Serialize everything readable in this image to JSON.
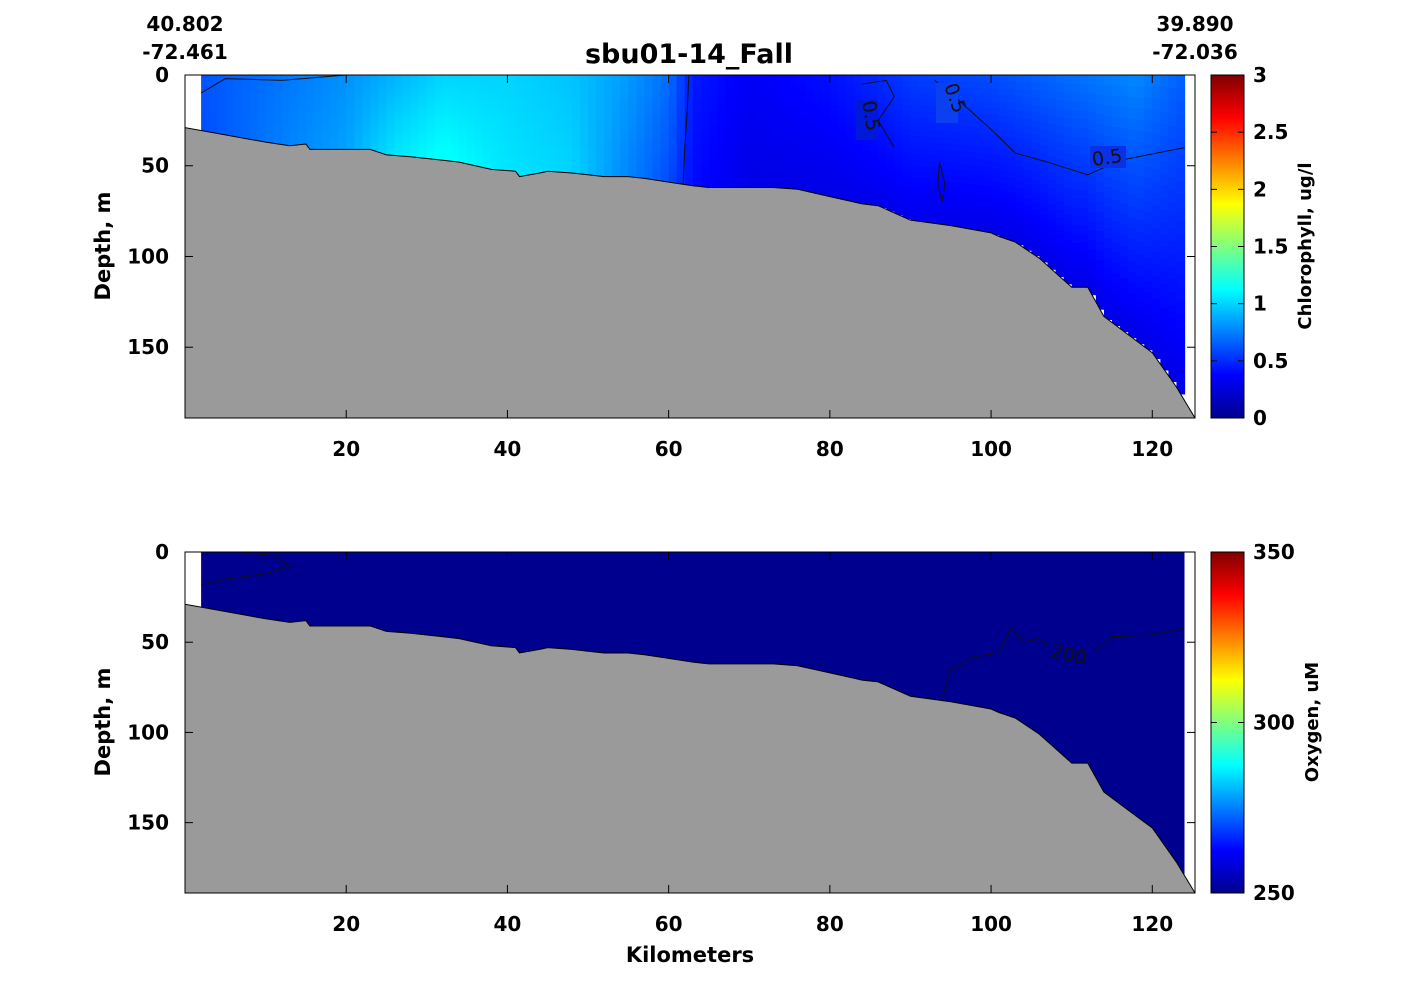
{
  "title": "sbu01-14_Fall",
  "coords": {
    "start": {
      "lat": "40.802",
      "lon": "-72.461"
    },
    "end": {
      "lat": "39.890",
      "lon": "-72.036"
    }
  },
  "colors": {
    "bathymetry": "#9a9a9a",
    "axis": "#000000",
    "colormap": "jet"
  },
  "chart_data": [
    {
      "type": "heatmap",
      "id": "chlorophyll",
      "title": "sbu01-14_Fall",
      "xlabel": "",
      "ylabel": "Depth, m",
      "xlim": [
        0,
        125.3
      ],
      "ylim": [
        189,
        0
      ],
      "xticks": [
        "20",
        "40",
        "60",
        "80",
        "100",
        "120"
      ],
      "yticks": [
        "0",
        "50",
        "100",
        "150"
      ],
      "colorbar": {
        "label": "Chlorophyll, ug/l",
        "range": [
          0,
          3
        ],
        "ticks": [
          "0",
          "0.5",
          "1",
          "1.5",
          "2",
          "2.5",
          "3"
        ]
      },
      "field_km": [
        2,
        124
      ],
      "field_values": [
        {
          "x": 2,
          "surface": 0.62,
          "bottom": 0.6
        },
        {
          "x": 10,
          "surface": 0.7,
          "bottom": 0.72
        },
        {
          "x": 20,
          "surface": 0.8,
          "bottom": 0.85
        },
        {
          "x": 26,
          "surface": 0.9,
          "bottom": 1.05
        },
        {
          "x": 32,
          "surface": 1.0,
          "bottom": 1.15
        },
        {
          "x": 40,
          "surface": 1.0,
          "bottom": 1.05
        },
        {
          "x": 48,
          "surface": 0.95,
          "bottom": 1.0
        },
        {
          "x": 54,
          "surface": 0.85,
          "bottom": 0.8
        },
        {
          "x": 60,
          "surface": 0.7,
          "bottom": 0.6
        },
        {
          "x": 63,
          "surface": 0.45,
          "bottom": 0.4
        },
        {
          "x": 70,
          "surface": 0.35,
          "bottom": 0.3
        },
        {
          "x": 80,
          "surface": 0.42,
          "bottom": 0.3
        },
        {
          "x": 90,
          "surface": 0.55,
          "bottom": 0.32
        },
        {
          "x": 100,
          "surface": 0.6,
          "bottom": 0.3
        },
        {
          "x": 110,
          "surface": 0.7,
          "bottom": 0.3
        },
        {
          "x": 118,
          "surface": 0.78,
          "bottom": 0.3
        },
        {
          "x": 124,
          "surface": 0.65,
          "bottom": 0.3
        }
      ],
      "contour_labels": [
        "0.5",
        "0.5",
        "0.5"
      ],
      "contours": [
        {
          "level": 0.5,
          "points": [
            [
              62.5,
              0
            ],
            [
              62.3,
              20
            ],
            [
              62.0,
              40
            ],
            [
              61.8,
              60
            ]
          ]
        },
        {
          "level": 0.5,
          "points": [
            [
              84,
              5
            ],
            [
              87,
              3
            ],
            [
              88,
              12
            ],
            [
              86,
              25
            ],
            [
              88,
              40
            ]
          ]
        },
        {
          "level": 0.5,
          "points": [
            [
              93,
              3
            ],
            [
              95,
              10
            ],
            [
              98,
              22
            ],
            [
              100,
              30
            ],
            [
              103,
              43
            ],
            [
              107,
              48
            ],
            [
              112,
              55
            ],
            [
              116,
              47
            ],
            [
              124,
              40
            ]
          ]
        },
        {
          "level": 0.5,
          "points": [
            [
              93.6,
              48
            ],
            [
              94.3,
              60
            ],
            [
              93.9,
              70
            ],
            [
              93.4,
              60
            ],
            [
              93.6,
              48
            ]
          ]
        },
        {
          "level": 0.5,
          "points": [
            [
              2,
              10
            ],
            [
              5,
              2
            ],
            [
              12,
              3
            ],
            [
              20,
              0
            ]
          ]
        }
      ]
    },
    {
      "type": "heatmap",
      "id": "oxygen",
      "xlabel": "Kilometers",
      "ylabel": "Depth, m",
      "xlim": [
        0,
        125.3
      ],
      "ylim": [
        189,
        0
      ],
      "xticks": [
        "20",
        "40",
        "60",
        "80",
        "100",
        "120"
      ],
      "yticks": [
        "0",
        "50",
        "100",
        "150"
      ],
      "colorbar": {
        "label": "Oxygen, uM",
        "range": [
          250,
          350
        ],
        "ticks": [
          "250",
          "300",
          "350"
        ]
      },
      "field_km": [
        2,
        124
      ],
      "field_value": 200,
      "contour_labels": [
        "200"
      ],
      "contours": [
        {
          "level": 200,
          "points": [
            [
              94,
              80
            ],
            [
              95,
              65
            ],
            [
              98,
              58
            ],
            [
              101,
              56
            ],
            [
              102.5,
              42
            ],
            [
              104,
              50
            ],
            [
              106,
              48
            ],
            [
              108,
              55
            ],
            [
              110,
              58
            ],
            [
              113,
              55
            ],
            [
              115,
              47
            ],
            [
              120,
              46
            ],
            [
              124,
              42
            ]
          ]
        },
        {
          "level": 200,
          "points": [
            [
              2,
              18
            ],
            [
              5,
              15
            ],
            [
              10,
              12
            ],
            [
              13,
              8
            ],
            [
              11,
              2
            ],
            [
              7,
              0
            ]
          ]
        }
      ]
    }
  ],
  "bathymetry": [
    [
      0,
      29
    ],
    [
      5,
      33
    ],
    [
      10,
      37
    ],
    [
      13,
      39
    ],
    [
      15,
      38
    ],
    [
      15.5,
      41
    ],
    [
      20,
      41
    ],
    [
      23,
      41
    ],
    [
      25,
      44
    ],
    [
      28,
      45
    ],
    [
      32,
      47
    ],
    [
      34,
      48
    ],
    [
      38,
      52
    ],
    [
      41,
      53
    ],
    [
      41.5,
      56
    ],
    [
      44,
      54
    ],
    [
      45,
      53
    ],
    [
      48,
      54
    ],
    [
      50,
      55
    ],
    [
      52,
      56
    ],
    [
      55,
      56
    ],
    [
      57,
      57
    ],
    [
      60,
      59
    ],
    [
      63,
      61
    ],
    [
      65,
      62
    ],
    [
      68,
      62
    ],
    [
      73,
      62
    ],
    [
      76,
      63
    ],
    [
      80,
      67
    ],
    [
      83,
      70
    ],
    [
      84,
      71
    ],
    [
      86,
      72
    ],
    [
      90,
      80
    ],
    [
      95,
      83
    ],
    [
      100,
      87
    ],
    [
      101,
      89
    ],
    [
      103,
      92
    ],
    [
      106,
      101
    ],
    [
      110,
      117
    ],
    [
      112,
      117
    ],
    [
      114,
      133
    ],
    [
      120,
      153
    ],
    [
      123,
      172
    ],
    [
      125.3,
      189
    ]
  ]
}
